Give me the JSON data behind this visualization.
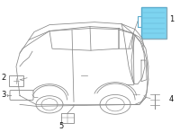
{
  "bg_color": "#ffffff",
  "car_outline": "#888888",
  "module_fill": "#7dd4f0",
  "module_edge": "#5aabcc",
  "line_color": "#888888",
  "label_color": "#111111",
  "part_numbers": [
    "1",
    "2",
    "3",
    "4",
    "5"
  ],
  "figsize": [
    2.0,
    1.47
  ],
  "dpi": 100,
  "lw": 0.55
}
